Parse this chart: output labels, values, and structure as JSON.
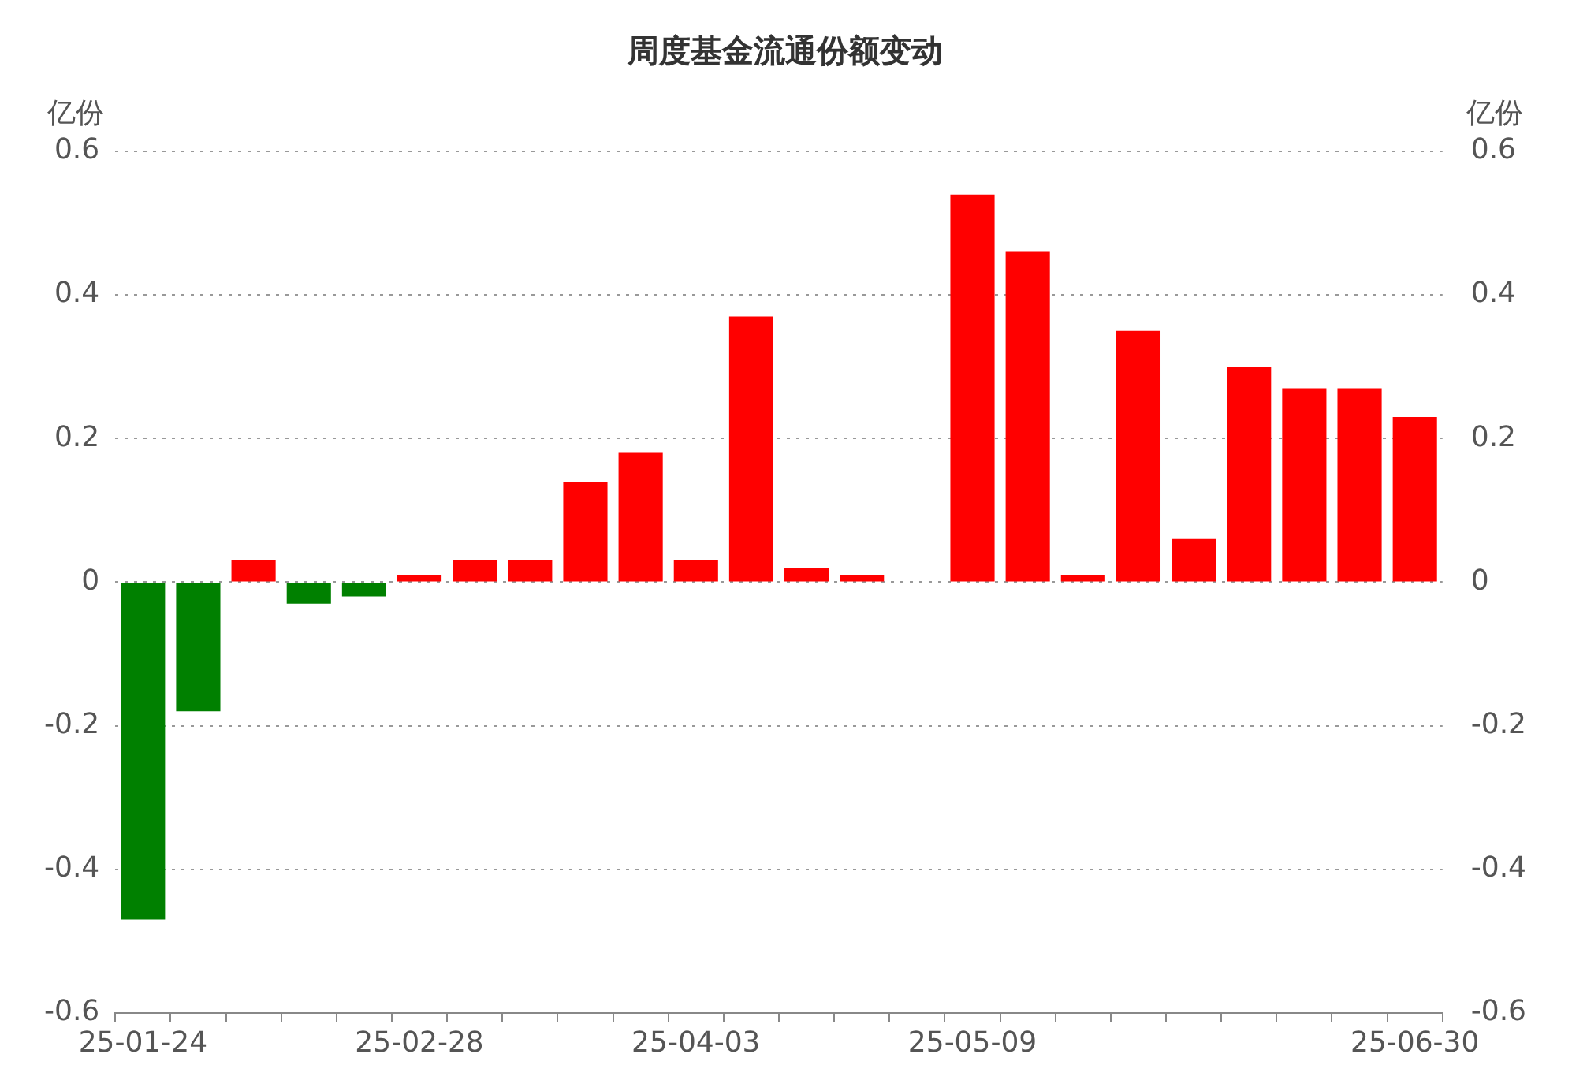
{
  "chart_data": {
    "type": "bar",
    "title": "周度基金流通份额变动",
    "ylabel": "亿份",
    "y2label": "亿份",
    "categories": [
      "25-01-24",
      null,
      null,
      null,
      null,
      "25-02-28",
      null,
      null,
      null,
      null,
      "25-04-03",
      null,
      null,
      null,
      null,
      "25-05-09",
      null,
      null,
      null,
      null,
      null,
      null,
      null,
      "25-06-30"
    ],
    "values": [
      -0.47,
      -0.18,
      0.03,
      -0.03,
      -0.02,
      0.01,
      0.03,
      0.03,
      0.14,
      0.18,
      0.03,
      0.37,
      0.02,
      0.01,
      0,
      0.54,
      0.46,
      0.01,
      0.35,
      0.06,
      0.3,
      0.27,
      0.27,
      0.23
    ],
    "colors": [
      "#008000",
      "#008000",
      "#ff0000",
      "#008000",
      "#008000",
      "#ff0000",
      "#ff0000",
      "#ff0000",
      "#ff0000",
      "#ff0000",
      "#ff0000",
      "#ff0000",
      "#ff0000",
      "#ff0000",
      "#ff0000",
      "#ff0000",
      "#ff0000",
      "#ff0000",
      "#ff0000",
      "#ff0000",
      "#ff0000",
      "#ff0000",
      "#ff0000",
      "#ff0000"
    ],
    "ylim": [
      -0.6,
      0.6
    ],
    "yticks": [
      -0.6,
      -0.4,
      -0.2,
      0,
      0.2,
      0.4,
      0.6
    ],
    "y2lim": [
      -0.6,
      0.6
    ],
    "y2ticks": [
      -0.6,
      -0.4,
      -0.2,
      0,
      0.2,
      0.4,
      0.6
    ],
    "grid": "y",
    "legend": false
  }
}
